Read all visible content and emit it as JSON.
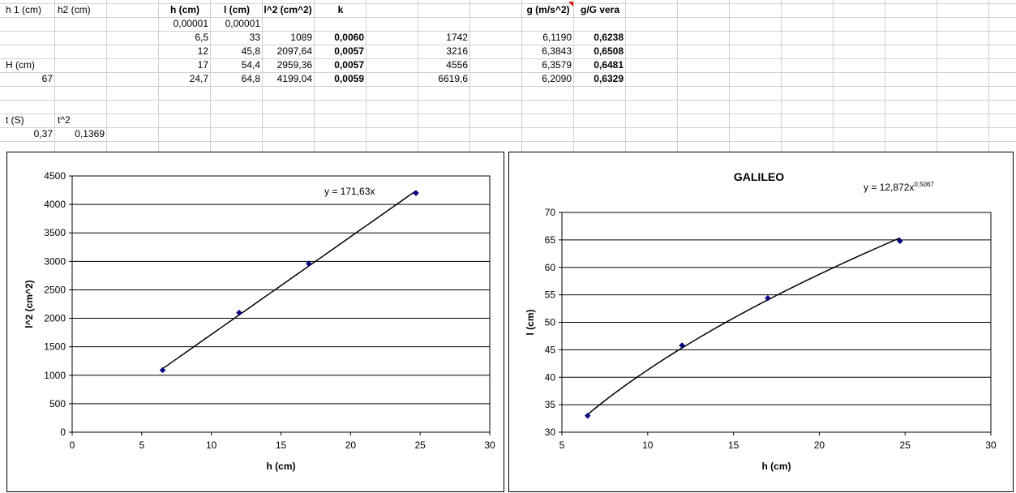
{
  "spreadsheet": {
    "top_left": {
      "h1_label": "h 1 (cm)",
      "h2_label": "h2 (cm)",
      "H_label": "H (cm)",
      "H_value": "67",
      "t_label": "t (S)",
      "t2_label": "t^2",
      "t_value": "0,37",
      "t2_value": "0,1369"
    },
    "table": {
      "headers": {
        "h": "h (cm)",
        "l": "l (cm)",
        "l2": "l^2 (cm^2)",
        "k": "k",
        "g": "g (m/s^2)",
        "ratio": "g/G vera"
      },
      "rows": [
        {
          "h": "0,00001",
          "l": "0,00001",
          "l2": "",
          "k": "",
          "x": "",
          "g": "",
          "ratio": ""
        },
        {
          "h": "6,5",
          "l": "33",
          "l2": "1089",
          "k": "0,0060",
          "x": "1742",
          "g": "6,1190",
          "ratio": "0,6238"
        },
        {
          "h": "12",
          "l": "45,8",
          "l2": "2097,64",
          "k": "0,0057",
          "x": "3216",
          "g": "6,3843",
          "ratio": "0,6508"
        },
        {
          "h": "17",
          "l": "54,4",
          "l2": "2959,36",
          "k": "0,0057",
          "x": "4556",
          "g": "6,3579",
          "ratio": "0,6481"
        },
        {
          "h": "24,7",
          "l": "64,8",
          "l2": "4199,04",
          "k": "0,0059",
          "x": "6619,6",
          "g": "6,2090",
          "ratio": "0,6329"
        }
      ]
    }
  },
  "chart_data": [
    {
      "type": "scatter",
      "title": "",
      "xlabel": "h (cm)",
      "ylabel": "l^2 (cm^2)",
      "xlim": [
        0,
        30
      ],
      "ylim": [
        0,
        4500
      ],
      "xticks": [
        "0",
        "5",
        "10",
        "15",
        "20",
        "25",
        "30"
      ],
      "yticks": [
        "0",
        "500",
        "1000",
        "1500",
        "2000",
        "2500",
        "3000",
        "3500",
        "4000",
        "4500"
      ],
      "grid": "horizontal",
      "marker_color": "#00007f",
      "series": [
        {
          "x": [
            6.5,
            12,
            17,
            24.7
          ],
          "y": [
            1089,
            2097.64,
            2959.36,
            4199.04
          ]
        }
      ],
      "trendline": {
        "kind": "linear",
        "slope": 171.63,
        "equation": "y = 171,63x",
        "superscript": ""
      }
    },
    {
      "type": "scatter",
      "title": "GALILEO",
      "xlabel": "h (cm)",
      "ylabel": "l (cm)",
      "xlim": [
        5,
        30
      ],
      "ylim": [
        30,
        70
      ],
      "xticks": [
        "5",
        "10",
        "15",
        "20",
        "25",
        "30"
      ],
      "yticks": [
        "30",
        "35",
        "40",
        "45",
        "50",
        "55",
        "60",
        "65",
        "70"
      ],
      "grid": "horizontal",
      "marker_color": "#00007f",
      "series": [
        {
          "x": [
            6.5,
            12,
            17,
            24.7
          ],
          "y": [
            33,
            45.8,
            54.4,
            64.8
          ]
        }
      ],
      "trendline": {
        "kind": "power",
        "coef": 12.872,
        "exponent": 0.5067,
        "equation": "y = 12,872x",
        "superscript": "0,5067"
      }
    }
  ]
}
